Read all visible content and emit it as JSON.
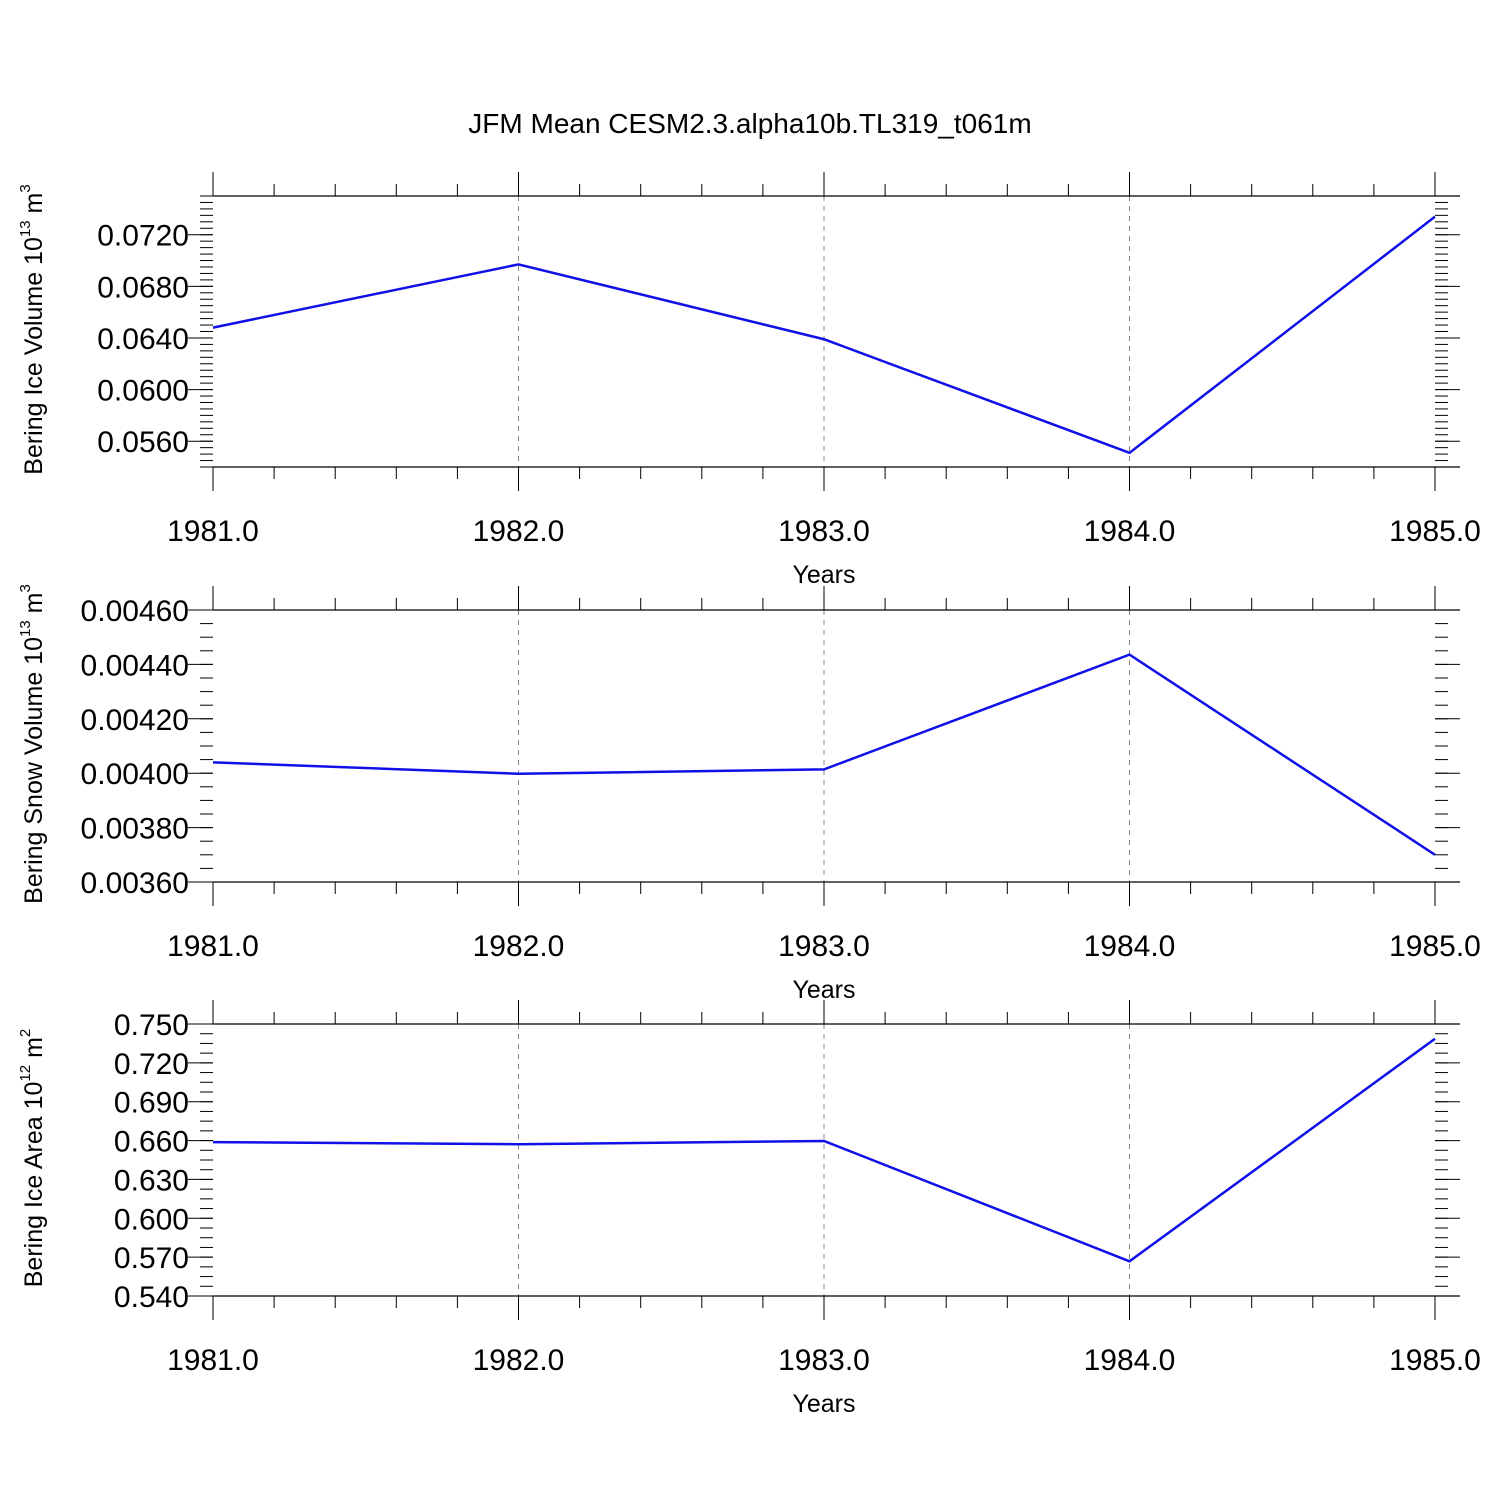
{
  "title": "JFM Mean CESM2.3.alpha10b.TL319_t061m",
  "colors": {
    "line": "#1010e8",
    "axis": "#000000",
    "grid": "#888888"
  },
  "chart_data": [
    {
      "type": "line",
      "ylabel_prefix": "Bering Ice Volume 10",
      "ylabel_exp": "13",
      "ylabel_unit": " m",
      "ylabel_unit_exp": "3",
      "xlabel": "Years",
      "x": [
        1981,
        1982,
        1983,
        1984,
        1985
      ],
      "xtick_labels": [
        "1981.0",
        "1982.0",
        "1983.0",
        "1984.0",
        "1985.0"
      ],
      "ytick_values": [
        0.056,
        0.06,
        0.064,
        0.068,
        0.072
      ],
      "ytick_labels": [
        "0.0560",
        "0.0600",
        "0.0640",
        "0.0680",
        "0.0720"
      ],
      "ylim": [
        0.054,
        0.075
      ],
      "y_minor_step": 0.0005,
      "series": [
        {
          "values": [
            0.0648,
            0.0697,
            0.0639,
            0.0551,
            0.0734
          ]
        }
      ],
      "grid": "vertical dashed at major x ticks"
    },
    {
      "type": "line",
      "ylabel_prefix": "Bering Snow Volume 10",
      "ylabel_exp": "13",
      "ylabel_unit": " m",
      "ylabel_unit_exp": "3",
      "xlabel": "Years",
      "x": [
        1981,
        1982,
        1983,
        1984,
        1985
      ],
      "xtick_labels": [
        "1981.0",
        "1982.0",
        "1983.0",
        "1984.0",
        "1985.0"
      ],
      "ytick_values": [
        0.0036,
        0.0038,
        0.004,
        0.0042,
        0.0044,
        0.0046
      ],
      "ytick_labels": [
        "0.00360",
        "0.00380",
        "0.00400",
        "0.00420",
        "0.00440",
        "0.00460"
      ],
      "ylim": [
        0.0036,
        0.0046
      ],
      "y_minor_step": 5e-05,
      "series": [
        {
          "values": [
            0.00404,
            0.003998,
            0.004014,
            0.004436,
            0.0037
          ]
        }
      ],
      "grid": "vertical dashed at major x ticks"
    },
    {
      "type": "line",
      "ylabel_prefix": "Bering Ice Area 10",
      "ylabel_exp": "12",
      "ylabel_unit": " m",
      "ylabel_unit_exp": "2",
      "xlabel": "Years",
      "x": [
        1981,
        1982,
        1983,
        1984,
        1985
      ],
      "xtick_labels": [
        "1981.0",
        "1982.0",
        "1983.0",
        "1984.0",
        "1985.0"
      ],
      "ytick_values": [
        0.54,
        0.57,
        0.6,
        0.63,
        0.66,
        0.69,
        0.72,
        0.75
      ],
      "ytick_labels": [
        "0.540",
        "0.570",
        "0.600",
        "0.630",
        "0.660",
        "0.690",
        "0.720",
        "0.750"
      ],
      "ylim": [
        0.54,
        0.75
      ],
      "y_minor_step": 0.0075,
      "series": [
        {
          "values": [
            0.6588,
            0.6572,
            0.6597,
            0.5668,
            0.7386
          ]
        }
      ],
      "grid": "vertical dashed at major x ticks"
    }
  ]
}
